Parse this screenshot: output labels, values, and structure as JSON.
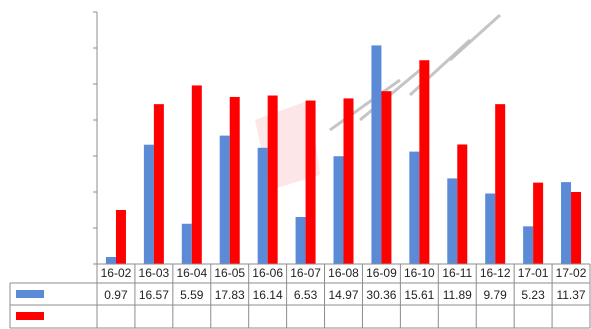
{
  "chart_data": {
    "type": "bar",
    "categories": [
      "16-02",
      "16-03",
      "16-04",
      "16-05",
      "16-06",
      "16-07",
      "16-08",
      "16-09",
      "16-10",
      "16-11",
      "16-12",
      "17-01",
      "17-02"
    ],
    "series": [
      {
        "color": "#5B8BD6",
        "values": [
          0.97,
          16.57,
          5.59,
          17.83,
          16.14,
          6.53,
          14.97,
          30.36,
          15.61,
          11.89,
          9.79,
          5.23,
          11.37
        ],
        "value_labels": [
          "0.97",
          "16.57",
          "5.59",
          "17.83",
          "16.14",
          "6.53",
          "14.97",
          "30.36",
          "15.61",
          "11.89",
          "9.79",
          "5.23",
          "11.37"
        ]
      },
      {
        "color": "#FF0000",
        "values": [
          7.5,
          22.2,
          24.8,
          23.2,
          23.4,
          22.7,
          23.0,
          24.0,
          28.3,
          16.6,
          22.2,
          11.3,
          10.0
        ]
      }
    ],
    "ylim": [
      0,
      35
    ],
    "grid": false,
    "legend": "data-table"
  }
}
